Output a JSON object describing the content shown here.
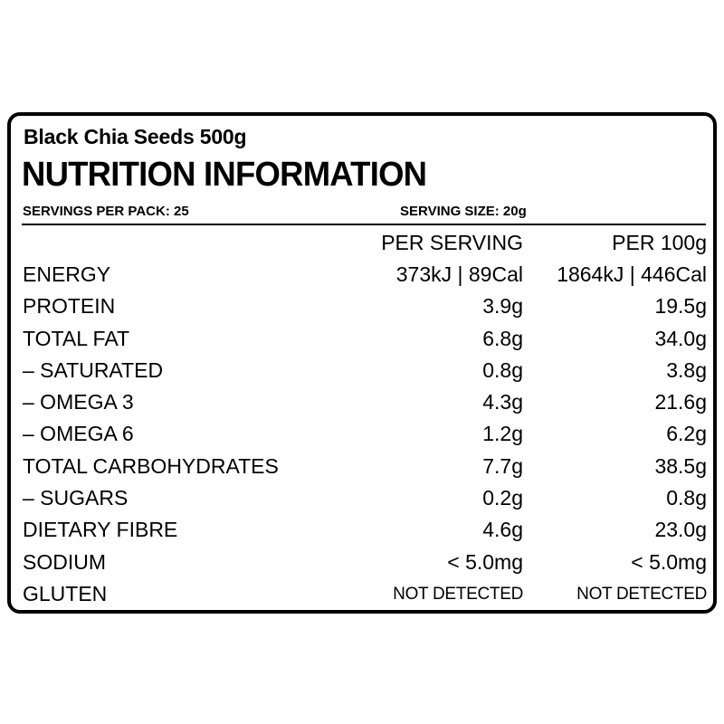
{
  "label": {
    "product_name": "Black Chia Seeds 500g",
    "heading": "NUTRITION INFORMATION",
    "servings_per_pack": "SERVINGS PER PACK:  25",
    "serving_size": "SERVING SIZE: 20g",
    "columns": {
      "per_serving": "PER SERVING",
      "per_100g": "PER 100g"
    },
    "rows": [
      {
        "nutrient": "ENERGY",
        "per_serving": "373kJ | 89Cal",
        "per_100g": "1864kJ | 446Cal"
      },
      {
        "nutrient": "PROTEIN",
        "per_serving": "3.9g",
        "per_100g": "19.5g"
      },
      {
        "nutrient": "TOTAL FAT",
        "per_serving": "6.8g",
        "per_100g": "34.0g"
      },
      {
        "nutrient": "– SATURATED",
        "per_serving": "0.8g",
        "per_100g": "3.8g"
      },
      {
        "nutrient": "– OMEGA 3",
        "per_serving": "4.3g",
        "per_100g": "21.6g"
      },
      {
        "nutrient": "– OMEGA 6",
        "per_serving": "1.2g",
        "per_100g": "6.2g"
      },
      {
        "nutrient": "TOTAL CARBOHYDRATES",
        "per_serving": "7.7g",
        "per_100g": "38.5g"
      },
      {
        "nutrient": "– SUGARS",
        "per_serving": "0.2g",
        "per_100g": "0.8g"
      },
      {
        "nutrient": "DIETARY FIBRE",
        "per_serving": "4.6g",
        "per_100g": "23.0g"
      },
      {
        "nutrient": "SODIUM",
        "per_serving": "< 5.0mg",
        "per_100g": "< 5.0mg"
      },
      {
        "nutrient": "GLUTEN",
        "per_serving": "NOT DETECTED",
        "per_100g": "NOT DETECTED"
      }
    ]
  },
  "colors": {
    "text": "#000000",
    "border": "#000000",
    "background": "#ffffff"
  }
}
